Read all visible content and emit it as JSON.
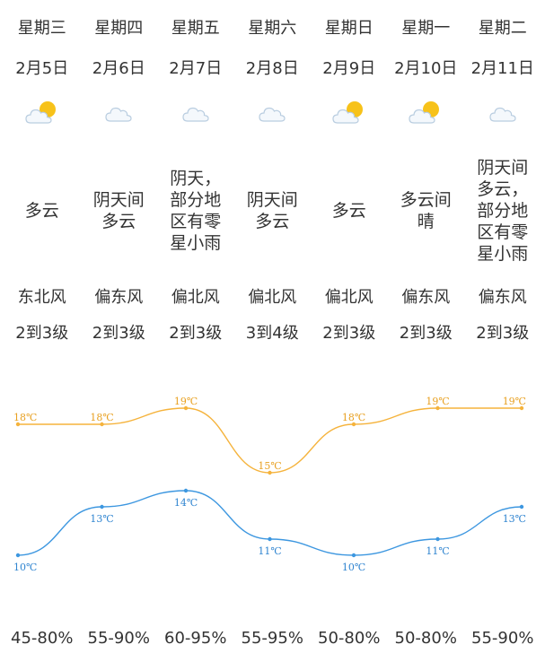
{
  "days": [
    {
      "weekday": "星期三",
      "date": "2月5日",
      "icon": "partly-cloudy-sun-icon",
      "condition": "多云",
      "wind": "东北风",
      "level": "2到3级",
      "high": 18,
      "low": 10,
      "high_label": "18℃",
      "low_label": "10℃",
      "humidity": "45-80%"
    },
    {
      "weekday": "星期四",
      "date": "2月6日",
      "icon": "cloud-icon",
      "condition": "阴天间多云",
      "wind": "偏东风",
      "level": "2到3级",
      "high": 18,
      "low": 13,
      "high_label": "18℃",
      "low_label": "13℃",
      "humidity": "55-90%"
    },
    {
      "weekday": "星期五",
      "date": "2月7日",
      "icon": "cloud-icon",
      "condition": "阴天，部分地区有零星小雨",
      "wind": "偏北风",
      "level": "2到3级",
      "high": 19,
      "low": 14,
      "high_label": "19℃",
      "low_label": "14℃",
      "humidity": "60-95%"
    },
    {
      "weekday": "星期六",
      "date": "2月8日",
      "icon": "cloud-icon",
      "condition": "阴天间多云",
      "wind": "偏北风",
      "level": "3到4级",
      "high": 15,
      "low": 11,
      "high_label": "15℃",
      "low_label": "11℃",
      "humidity": "55-95%"
    },
    {
      "weekday": "星期日",
      "date": "2月9日",
      "icon": "partly-cloudy-sun-icon",
      "condition": "多云",
      "wind": "偏北风",
      "level": "2到3级",
      "high": 18,
      "low": 10,
      "high_label": "18℃",
      "low_label": "10℃",
      "humidity": "50-80%"
    },
    {
      "weekday": "星期一",
      "date": "2月10日",
      "icon": "partly-cloudy-sun-icon",
      "condition": "多云间晴",
      "wind": "偏东风",
      "level": "2到3级",
      "high": 19,
      "low": 11,
      "high_label": "19℃",
      "low_label": "11℃",
      "humidity": "50-80%"
    },
    {
      "weekday": "星期二",
      "date": "2月11日",
      "icon": "cloud-icon",
      "condition": "阴天间多云，部分地区有零星小雨",
      "wind": "偏东风",
      "level": "2到3级",
      "high": 19,
      "low": 13,
      "high_label": "19℃",
      "low_label": "13℃",
      "humidity": "55-90%"
    }
  ],
  "colors": {
    "high_line": "#f5b33c",
    "high_label": "#e8a020",
    "low_line": "#3d97e0",
    "low_label": "#2f84d0",
    "sun": "#f7c21a",
    "cloud_fill": "#f4f8fc",
    "cloud_stroke": "#b9cde0"
  }
}
